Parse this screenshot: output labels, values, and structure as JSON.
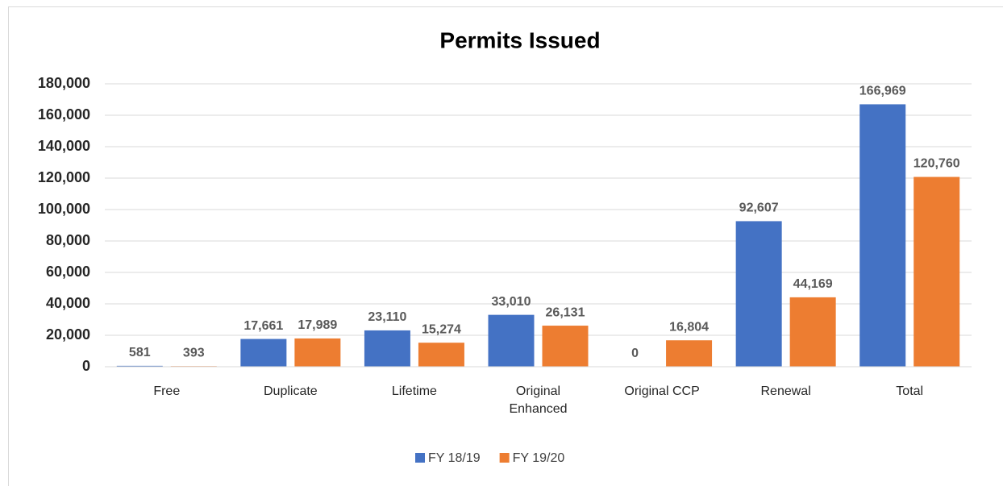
{
  "chart_data": {
    "type": "bar",
    "title": "Permits Issued",
    "categories": [
      "Free",
      "Duplicate",
      "Lifetime",
      "Original Enhanced",
      "Original CCP",
      "Renewal",
      "Total"
    ],
    "series": [
      {
        "name": "FY 18/19",
        "color": "#4472c4",
        "values": [
          581,
          17661,
          23110,
          33010,
          0,
          92607,
          166969
        ],
        "value_labels": [
          "581",
          "17,661",
          "23,110",
          "33,010",
          "0",
          "92,607",
          "166,969"
        ]
      },
      {
        "name": "FY 19/20",
        "color": "#ed7d31",
        "values": [
          393,
          17989,
          15274,
          26131,
          16804,
          44169,
          120760
        ],
        "value_labels": [
          "393",
          "17,989",
          "15,274",
          "26,131",
          "16,804",
          "44,169",
          "120,760"
        ]
      }
    ],
    "ylim": [
      0,
      180000
    ],
    "yticks": [
      0,
      {
        "value": 20000,
        "label": "20,000"
      },
      {
        "value": 40000,
        "label": "40,000"
      },
      {
        "value": 60000,
        "label": "60,000"
      },
      {
        "value": 80000,
        "label": "80,000"
      },
      {
        "value": 100000,
        "label": "100,000"
      },
      {
        "value": 120000,
        "label": "120,000"
      },
      {
        "value": 140000,
        "label": "140,000"
      },
      {
        "value": 160000,
        "label": "160,000"
      },
      {
        "value": 180000,
        "label": "180,000"
      }
    ],
    "grid": true,
    "legend": "bottom"
  }
}
